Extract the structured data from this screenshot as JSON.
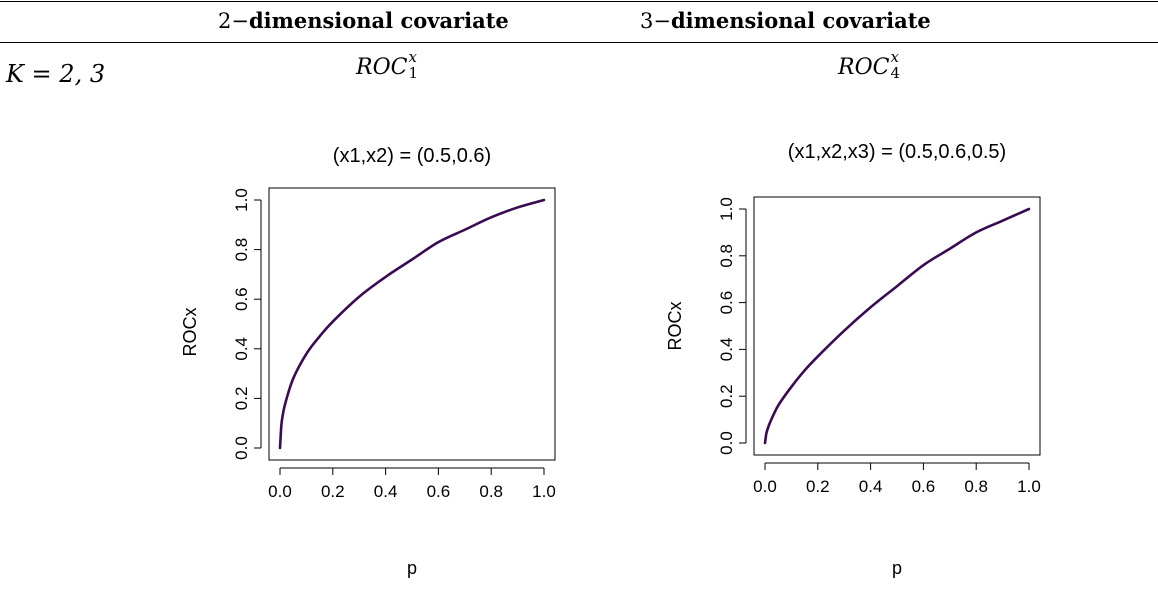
{
  "table": {
    "col_headers": [
      {
        "prefix": "2−",
        "bold": "dimensional covariate"
      },
      {
        "prefix": "3−",
        "bold": "dimensional covariate"
      }
    ],
    "row_label": "K = 2, 3",
    "panel_labels": [
      {
        "base": "ROC",
        "sup": "x",
        "sub": "1"
      },
      {
        "base": "ROC",
        "sup": "x",
        "sub": "4"
      }
    ]
  },
  "colors": {
    "curve": "#3a0a52",
    "axis": "#000000"
  },
  "chart_data": [
    {
      "type": "line",
      "title": "(x1,x2) = (0.5,0.6)",
      "xlabel": "p",
      "ylabel": "ROCx",
      "xlim": [
        0,
        1
      ],
      "ylim": [
        0,
        1
      ],
      "xticks": [
        0.0,
        0.2,
        0.4,
        0.6,
        0.8,
        1.0
      ],
      "yticks": [
        0.0,
        0.2,
        0.4,
        0.6,
        0.8,
        1.0
      ],
      "xtick_labels": [
        "0.0",
        "0.2",
        "0.4",
        "0.6",
        "0.8",
        "1.0"
      ],
      "ytick_labels": [
        "0.0",
        "0.2",
        "0.4",
        "0.6",
        "0.8",
        "1.0"
      ],
      "series": [
        {
          "x": [
            0,
            0.005,
            0.01,
            0.02,
            0.05,
            0.1,
            0.15,
            0.2,
            0.3,
            0.4,
            0.5,
            0.6,
            0.7,
            0.8,
            0.9,
            1.0
          ],
          "y": [
            0,
            0.09,
            0.13,
            0.18,
            0.28,
            0.38,
            0.45,
            0.51,
            0.61,
            0.69,
            0.76,
            0.83,
            0.88,
            0.93,
            0.97,
            1.0
          ]
        }
      ]
    },
    {
      "type": "line",
      "title": "(x1,x2,x3) = (0.5,0.6,0.5)",
      "xlabel": "p",
      "ylabel": "ROCx",
      "xlim": [
        0,
        1
      ],
      "ylim": [
        0,
        1
      ],
      "xticks": [
        0.0,
        0.2,
        0.4,
        0.6,
        0.8,
        1.0
      ],
      "yticks": [
        0.0,
        0.2,
        0.4,
        0.6,
        0.8,
        1.0
      ],
      "xtick_labels": [
        "0.0",
        "0.2",
        "0.4",
        "0.6",
        "0.8",
        "1.0"
      ],
      "ytick_labels": [
        "0.0",
        "0.2",
        "0.4",
        "0.6",
        "0.8",
        "1.0"
      ],
      "series": [
        {
          "x": [
            0,
            0.005,
            0.01,
            0.02,
            0.05,
            0.1,
            0.15,
            0.2,
            0.3,
            0.4,
            0.5,
            0.6,
            0.7,
            0.8,
            0.9,
            1.0
          ],
          "y": [
            0,
            0.04,
            0.06,
            0.09,
            0.16,
            0.24,
            0.31,
            0.37,
            0.48,
            0.58,
            0.67,
            0.76,
            0.83,
            0.9,
            0.95,
            1.0
          ]
        }
      ]
    }
  ]
}
